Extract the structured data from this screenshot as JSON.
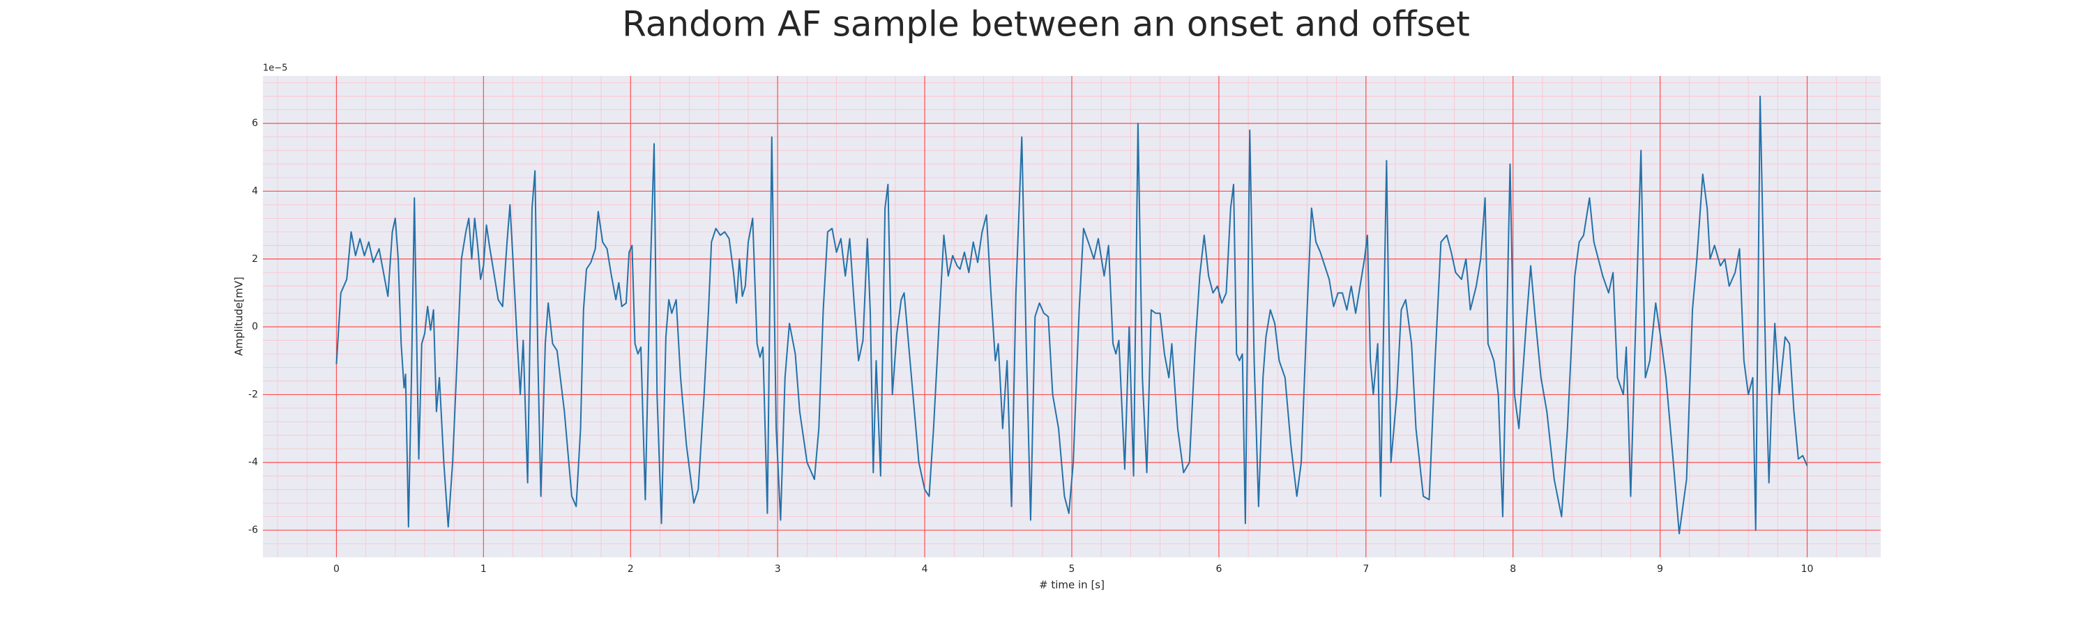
{
  "chart_data": {
    "type": "line",
    "title": "Random AF sample between an onset and offset",
    "xlabel": "# time in [s]",
    "ylabel": "Amplitude[mV]",
    "y_offset_text": "1e−5",
    "xlim": [
      -0.5,
      10.5
    ],
    "xticks": [
      0,
      1,
      2,
      3,
      4,
      5,
      6,
      7,
      8,
      9,
      10
    ],
    "ylim": [
      -6.8,
      7.4
    ],
    "yticks": [
      -6,
      -4,
      -2,
      0,
      2,
      4,
      6
    ],
    "grid": true,
    "minor_grid": true,
    "grid_color": "#ff4d4d",
    "minor_grid_color": "#ffc0cb",
    "background": "#eaeaf2",
    "series": [
      {
        "color": "#2471a8",
        "x": [
          0.0,
          0.03,
          0.07,
          0.1,
          0.13,
          0.16,
          0.19,
          0.22,
          0.25,
          0.29,
          0.32,
          0.35,
          0.38,
          0.4,
          0.42,
          0.44,
          0.46,
          0.47,
          0.49,
          0.51,
          0.53,
          0.55,
          0.56,
          0.58,
          0.6,
          0.62,
          0.64,
          0.66,
          0.68,
          0.7,
          0.73,
          0.76,
          0.79,
          0.82,
          0.85,
          0.88,
          0.9,
          0.92,
          0.94,
          0.96,
          0.98,
          1.0,
          1.02,
          1.04,
          1.07,
          1.1,
          1.13,
          1.16,
          1.18,
          1.2,
          1.23,
          1.25,
          1.27,
          1.3,
          1.33,
          1.35,
          1.37,
          1.39,
          1.42,
          1.44,
          1.47,
          1.5,
          1.55,
          1.6,
          1.63,
          1.66,
          1.68,
          1.7,
          1.73,
          1.76,
          1.78,
          1.81,
          1.84,
          1.87,
          1.9,
          1.92,
          1.94,
          1.97,
          1.99,
          2.01,
          2.03,
          2.05,
          2.07,
          2.1,
          2.13,
          2.16,
          2.18,
          2.21,
          2.24,
          2.26,
          2.28,
          2.31,
          2.34,
          2.38,
          2.43,
          2.46,
          2.5,
          2.53,
          2.55,
          2.58,
          2.61,
          2.64,
          2.67,
          2.7,
          2.72,
          2.74,
          2.76,
          2.78,
          2.8,
          2.83,
          2.86,
          2.88,
          2.9,
          2.93,
          2.96,
          2.99,
          3.02,
          3.05,
          3.08,
          3.12,
          3.15,
          3.2,
          3.25,
          3.28,
          3.31,
          3.34,
          3.37,
          3.4,
          3.43,
          3.46,
          3.49,
          3.52,
          3.55,
          3.58,
          3.61,
          3.63,
          3.65,
          3.67,
          3.7,
          3.73,
          3.75,
          3.78,
          3.81,
          3.84,
          3.86,
          3.89,
          3.92,
          3.96,
          4.0,
          4.03,
          4.06,
          4.1,
          4.13,
          4.16,
          4.19,
          4.22,
          4.24,
          4.27,
          4.3,
          4.33,
          4.36,
          4.39,
          4.42,
          4.45,
          4.48,
          4.5,
          4.53,
          4.56,
          4.59,
          4.62,
          4.66,
          4.69,
          4.72,
          4.75,
          4.78,
          4.81,
          4.84,
          4.87,
          4.91,
          4.95,
          4.98,
          5.01,
          5.05,
          5.08,
          5.12,
          5.15,
          5.18,
          5.22,
          5.25,
          5.28,
          5.3,
          5.32,
          5.36,
          5.39,
          5.42,
          5.45,
          5.48,
          5.51,
          5.54,
          5.57,
          5.6,
          5.63,
          5.66,
          5.68,
          5.72,
          5.76,
          5.8,
          5.84,
          5.87,
          5.9,
          5.93,
          5.96,
          5.99,
          6.02,
          6.05,
          6.08,
          6.1,
          6.12,
          6.14,
          6.16,
          6.18,
          6.21,
          6.24,
          6.27,
          6.3,
          6.32,
          6.35,
          6.38,
          6.41,
          6.45,
          6.49,
          6.53,
          6.56,
          6.6,
          6.63,
          6.66,
          6.69,
          6.72,
          6.75,
          6.78,
          6.81,
          6.84,
          6.87,
          6.9,
          6.93,
          6.96,
          6.99,
          7.01,
          7.03,
          7.05,
          7.08,
          7.1,
          7.14,
          7.17,
          7.21,
          7.24,
          7.27,
          7.31,
          7.34,
          7.39,
          7.43,
          7.47,
          7.51,
          7.55,
          7.58,
          7.61,
          7.65,
          7.68,
          7.71,
          7.75,
          7.78,
          7.81,
          7.83,
          7.87,
          7.9,
          7.93,
          7.98,
          8.01,
          8.04,
          8.09,
          8.12,
          8.15,
          8.19,
          8.23,
          8.28,
          8.33,
          8.37,
          8.42,
          8.45,
          8.48,
          8.52,
          8.55,
          8.58,
          8.61,
          8.65,
          8.68,
          8.71,
          8.75,
          8.77,
          8.8,
          8.83,
          8.87,
          8.9,
          8.93,
          8.97,
          9.01,
          9.04,
          9.09,
          9.13,
          9.18,
          9.22,
          9.25,
          9.29,
          9.32,
          9.34,
          9.37,
          9.41,
          9.44,
          9.47,
          9.51,
          9.54,
          9.57,
          9.6,
          9.63,
          9.65,
          9.68,
          9.72,
          9.74,
          9.76,
          9.78,
          9.81,
          9.85,
          9.88,
          9.91,
          9.94,
          9.97,
          10.0
        ],
        "values": [
          -1.1,
          1.0,
          1.4,
          2.8,
          2.1,
          2.6,
          2.1,
          2.5,
          1.9,
          2.3,
          1.6,
          0.9,
          2.8,
          3.2,
          2.0,
          -0.5,
          -1.8,
          -1.4,
          -5.9,
          -1.5,
          3.8,
          -1.5,
          -3.9,
          -0.5,
          -0.2,
          0.6,
          -0.1,
          0.5,
          -2.5,
          -1.5,
          -4.0,
          -5.9,
          -4.0,
          -1.0,
          2.0,
          2.8,
          3.2,
          2.0,
          3.2,
          2.4,
          1.4,
          1.8,
          3.0,
          2.4,
          1.6,
          0.8,
          0.6,
          2.5,
          3.6,
          2.0,
          -0.5,
          -2.0,
          -0.4,
          -4.6,
          3.5,
          4.6,
          -1.0,
          -5.0,
          -0.5,
          0.7,
          -0.5,
          -0.7,
          -2.5,
          -5.0,
          -5.3,
          -3.0,
          0.5,
          1.7,
          1.9,
          2.3,
          3.4,
          2.5,
          2.3,
          1.5,
          0.8,
          1.3,
          0.6,
          0.7,
          2.2,
          2.4,
          -0.5,
          -0.8,
          -0.6,
          -5.1,
          1.0,
          5.4,
          -2.0,
          -5.8,
          -0.3,
          0.8,
          0.4,
          0.8,
          -1.5,
          -3.5,
          -5.2,
          -4.8,
          -2.0,
          0.5,
          2.5,
          2.9,
          2.7,
          2.8,
          2.6,
          1.6,
          0.7,
          2.0,
          0.9,
          1.2,
          2.5,
          3.2,
          -0.5,
          -0.9,
          -0.6,
          -5.5,
          5.6,
          -3.0,
          -5.7,
          -1.5,
          0.1,
          -0.8,
          -2.5,
          -4.0,
          -4.5,
          -3.0,
          0.5,
          2.8,
          2.9,
          2.2,
          2.6,
          1.5,
          2.6,
          0.7,
          -1.0,
          -0.4,
          2.6,
          0.4,
          -4.3,
          -1.0,
          -4.4,
          3.5,
          4.2,
          -2.0,
          -0.2,
          0.8,
          1.0,
          -0.5,
          -2.0,
          -4.0,
          -4.8,
          -5.0,
          -3.0,
          0.3,
          2.7,
          1.5,
          2.1,
          1.8,
          1.7,
          2.2,
          1.6,
          2.5,
          1.9,
          2.8,
          3.3,
          1.0,
          -1.0,
          -0.5,
          -3.0,
          -1.0,
          -5.3,
          1.0,
          5.6,
          -0.5,
          -5.7,
          0.3,
          0.7,
          0.4,
          0.3,
          -2.0,
          -3.0,
          -5.0,
          -5.5,
          -4.0,
          0.5,
          2.9,
          2.4,
          2.0,
          2.6,
          1.5,
          2.4,
          -0.5,
          -0.8,
          -0.4,
          -4.2,
          0.0,
          -4.4,
          6.0,
          -1.5,
          -4.3,
          0.5,
          0.4,
          0.4,
          -0.8,
          -1.5,
          -0.5,
          -3.0,
          -4.3,
          -4.0,
          -0.5,
          1.5,
          2.7,
          1.5,
          1.0,
          1.2,
          0.7,
          1.0,
          3.5,
          4.2,
          -0.8,
          -1.0,
          -0.8,
          -5.8,
          5.8,
          -1.0,
          -5.3,
          -1.5,
          -0.3,
          0.5,
          0.1,
          -1.0,
          -1.5,
          -3.5,
          -5.0,
          -4.0,
          0.5,
          3.5,
          2.5,
          2.2,
          1.8,
          1.4,
          0.6,
          1.0,
          1.0,
          0.5,
          1.2,
          0.4,
          1.2,
          2.0,
          2.7,
          -1.0,
          -2.0,
          -0.5,
          -5.0,
          4.9,
          -4.0,
          -2.0,
          0.5,
          0.8,
          -0.5,
          -3.0,
          -5.0,
          -5.1,
          -1.0,
          2.5,
          2.7,
          2.2,
          1.6,
          1.4,
          2.0,
          0.5,
          1.2,
          2.0,
          3.8,
          -0.5,
          -1.0,
          -2.0,
          -5.6,
          4.8,
          -2.0,
          -3.0,
          0.1,
          1.8,
          0.3,
          -1.5,
          -2.5,
          -4.5,
          -5.6,
          -3.0,
          1.5,
          2.5,
          2.7,
          3.8,
          2.5,
          2.0,
          1.5,
          1.0,
          1.6,
          -1.5,
          -2.0,
          -0.6,
          -5.0,
          -0.5,
          5.2,
          -1.5,
          -1.0,
          0.7,
          -0.5,
          -1.5,
          -4.0,
          -6.1,
          -4.5,
          0.5,
          2.0,
          4.5,
          3.5,
          2.0,
          2.4,
          1.8,
          2.0,
          1.2,
          1.6,
          2.3,
          -1.0,
          -2.0,
          -1.5,
          -6.0,
          6.8,
          -1.5,
          -4.6,
          -2.0,
          0.1,
          -2.0,
          -0.3,
          -0.5,
          -2.5,
          -3.9,
          -3.8,
          -4.1
        ]
      }
    ]
  }
}
